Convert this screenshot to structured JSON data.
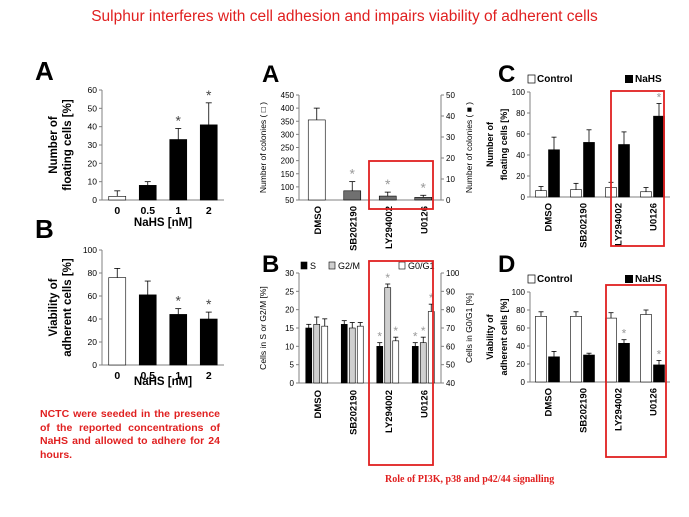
{
  "title": "Sulphur interferes with cell adhesion and impairs viability of adherent cells",
  "left_note": "NCTC were seeded in the presence of the reported concentrations of NaHS and allowed to adhere for 24 hours.",
  "right_note": "Role of PI3K, p38 and p42/44 signalling",
  "colors": {
    "red": "#e02020",
    "black": "#000000",
    "white": "#ffffff",
    "gray_dark": "#707070",
    "gray_light": "#cfcfcf",
    "axis": "#808080"
  },
  "chart_data": [
    {
      "id": "left-A",
      "panel_label": "A",
      "type": "bar",
      "categories": [
        "0",
        "0.5",
        "1",
        "2"
      ],
      "values": [
        2,
        8,
        33,
        41
      ],
      "errors": [
        3,
        2,
        6,
        12
      ],
      "bar_fills": [
        "white",
        "black",
        "black",
        "black"
      ],
      "significant": [
        false,
        false,
        true,
        true
      ],
      "xlabel": "NaHS [nM]",
      "ylabel": "Number of floating cells [%]",
      "ylim": [
        0,
        60
      ],
      "yticks": [
        0,
        10,
        20,
        30,
        40,
        50,
        60
      ]
    },
    {
      "id": "left-B",
      "panel_label": "B",
      "type": "bar",
      "categories": [
        "0",
        "0.5",
        "1",
        "2"
      ],
      "values": [
        76,
        61,
        44,
        40
      ],
      "errors": [
        8,
        12,
        5,
        6
      ],
      "bar_fills": [
        "white",
        "black",
        "black",
        "black"
      ],
      "significant": [
        false,
        false,
        true,
        true
      ],
      "xlabel": "NaHS [nM]",
      "ylabel": "Viability of adherent cells [%]",
      "ylim": [
        0,
        100
      ],
      "yticks": [
        0,
        20,
        40,
        60,
        80,
        100
      ]
    },
    {
      "id": "mid-A",
      "panel_label": "A",
      "type": "bar",
      "categories": [
        "DMSO",
        "SB202190",
        "LY294002",
        "U0126"
      ],
      "values": [
        355,
        85,
        65,
        60
      ],
      "errors": [
        45,
        35,
        15,
        8
      ],
      "bar_fills": [
        "white",
        "gray_dark",
        "gray_dark",
        "gray_dark"
      ],
      "significant": [
        false,
        true,
        true,
        true
      ],
      "ylabel": "Number of colonies ( □ )",
      "y2label": "Number of colonies ( ■ )",
      "ylim": [
        50,
        450
      ],
      "yticks": [
        50,
        100,
        150,
        200,
        250,
        300,
        350,
        400,
        450
      ],
      "y2ticks": [
        0,
        10,
        20,
        30,
        40,
        50
      ],
      "highlight": [
        "LY294002",
        "U0126"
      ]
    },
    {
      "id": "mid-B",
      "panel_label": "B",
      "type": "bar",
      "legend": [
        "S",
        "G2/M",
        "G0/G1"
      ],
      "categories": [
        "DMSO",
        "SB202190",
        "LY294002",
        "U0126"
      ],
      "series": [
        {
          "name": "S",
          "fill": "black",
          "values": [
            15,
            16,
            10,
            10
          ],
          "errors": [
            1,
            1,
            1,
            1
          ]
        },
        {
          "name": "G2/M",
          "fill": "gray_light",
          "values": [
            16,
            15,
            26,
            11
          ],
          "errors": [
            2,
            1.5,
            1,
            1.5
          ]
        },
        {
          "name": "G0/G1",
          "fill": "white",
          "axis": "right",
          "values": [
            15.5,
            15.5,
            11.5,
            19.5
          ],
          "errors": [
            2,
            1,
            1,
            2
          ]
        }
      ],
      "significant": [
        [
          false,
          false,
          true,
          true
        ],
        [
          false,
          false,
          true,
          true
        ],
        [
          false,
          false,
          true,
          true
        ]
      ],
      "ylabel": "Cells in S or G2/M [%]",
      "y2label": "Cells in G0/G1 [%]",
      "ylim": [
        0,
        30
      ],
      "yticks": [
        0,
        5,
        10,
        15,
        20,
        25,
        30
      ],
      "y2ticks": [
        40,
        50,
        60,
        70,
        80,
        90,
        100
      ],
      "highlight": [
        "LY294002",
        "U0126"
      ]
    },
    {
      "id": "right-C",
      "panel_label": "C",
      "type": "bar",
      "legend": [
        "Control",
        "NaHS"
      ],
      "categories": [
        "DMSO",
        "SB202190",
        "LY294002",
        "U0126"
      ],
      "series": [
        {
          "name": "Control",
          "fill": "white",
          "values": [
            6,
            7,
            9,
            5
          ],
          "errors": [
            4,
            6,
            5,
            4
          ]
        },
        {
          "name": "NaHS",
          "fill": "black",
          "values": [
            45,
            52,
            50,
            77
          ],
          "errors": [
            12,
            12,
            12,
            12
          ]
        }
      ],
      "significant": [
        [
          false,
          false,
          false,
          false
        ],
        [
          false,
          false,
          false,
          true
        ]
      ],
      "ylabel": "Number of floating cells [%]",
      "ylim": [
        0,
        100
      ],
      "yticks": [
        0,
        20,
        40,
        60,
        80,
        100
      ],
      "highlight": [
        "U0126"
      ]
    },
    {
      "id": "right-D",
      "panel_label": "D",
      "type": "bar",
      "legend": [
        "Control",
        "NaHS"
      ],
      "categories": [
        "DMSO",
        "SB202190",
        "LY294002",
        "U0126"
      ],
      "series": [
        {
          "name": "Control",
          "fill": "white",
          "values": [
            73,
            73,
            71,
            75
          ],
          "errors": [
            5,
            5,
            6,
            5
          ]
        },
        {
          "name": "NaHS",
          "fill": "black",
          "values": [
            28,
            30,
            43,
            19
          ],
          "errors": [
            6,
            2,
            4,
            5
          ]
        }
      ],
      "significant": [
        [
          false,
          false,
          false,
          false
        ],
        [
          false,
          false,
          true,
          true
        ]
      ],
      "ylabel": "Viability of adherent cells [%]",
      "ylim": [
        0,
        100
      ],
      "yticks": [
        0,
        20,
        40,
        60,
        80,
        100
      ],
      "highlight": [
        "LY294002",
        "U0126"
      ]
    }
  ]
}
